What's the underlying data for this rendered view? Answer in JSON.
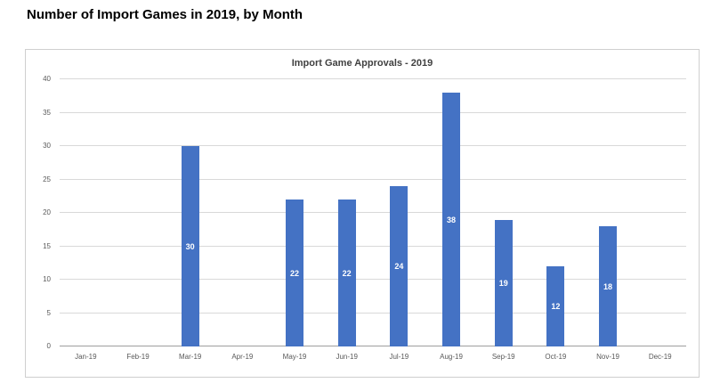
{
  "page": {
    "title": "Number of Import Games in 2019, by Month"
  },
  "chart_data": {
    "type": "bar",
    "title": "Import Game Approvals - 2019",
    "categories": [
      "Jan-19",
      "Feb-19",
      "Mar-19",
      "Apr-19",
      "May-19",
      "Jun-19",
      "Jul-19",
      "Aug-19",
      "Sep-19",
      "Oct-19",
      "Nov-19",
      "Dec-19"
    ],
    "values": [
      0,
      0,
      30,
      0,
      22,
      22,
      24,
      38,
      19,
      12,
      18,
      0
    ],
    "xlabel": "",
    "ylabel": "",
    "ylim": [
      0,
      40
    ],
    "yticks": [
      0,
      5,
      10,
      15,
      20,
      25,
      30,
      35,
      40
    ],
    "grid": true,
    "legend": "none",
    "bar_color": "#4472C4",
    "data_label_color": "#FFFFFF"
  }
}
